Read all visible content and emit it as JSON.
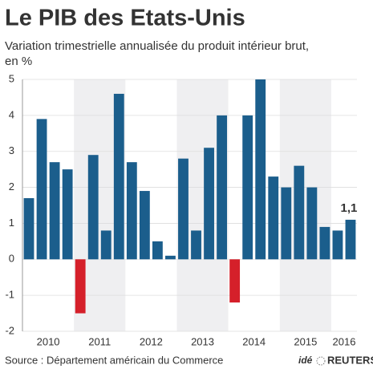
{
  "chart_data": {
    "type": "bar",
    "title": "Le PIB des Etats-Unis",
    "subtitle": [
      "Variation trimestrielle annualisée du produit intérieur brut,",
      "en %"
    ],
    "categories": [
      "2010",
      null,
      null,
      null,
      "2011",
      null,
      null,
      null,
      "2012",
      null,
      null,
      null,
      "2013",
      null,
      null,
      null,
      "2014",
      null,
      null,
      null,
      "2015",
      null,
      null,
      null,
      "2016",
      null
    ],
    "values": [
      1.7,
      3.9,
      2.7,
      2.5,
      -1.5,
      2.9,
      0.8,
      4.6,
      2.7,
      1.9,
      0.5,
      0.1,
      2.8,
      0.8,
      3.1,
      4.0,
      -1.2,
      4.0,
      5.0,
      2.3,
      2.0,
      2.6,
      2.0,
      0.9,
      0.8,
      1.1
    ],
    "value_labels": [
      null,
      null,
      null,
      null,
      null,
      null,
      null,
      null,
      null,
      null,
      null,
      null,
      null,
      null,
      null,
      null,
      null,
      null,
      null,
      null,
      null,
      null,
      null,
      null,
      null,
      "1,1"
    ],
    "color": "#1b5e8c",
    "negative_color": "#d5202a",
    "ylim": [
      -2,
      5
    ],
    "yticks": [
      -2,
      -1,
      0,
      1,
      2,
      3,
      4,
      5
    ],
    "grid": true,
    "source": "Source : Département américain du Commerce",
    "logo": [
      "idé",
      "REUTERS"
    ]
  }
}
